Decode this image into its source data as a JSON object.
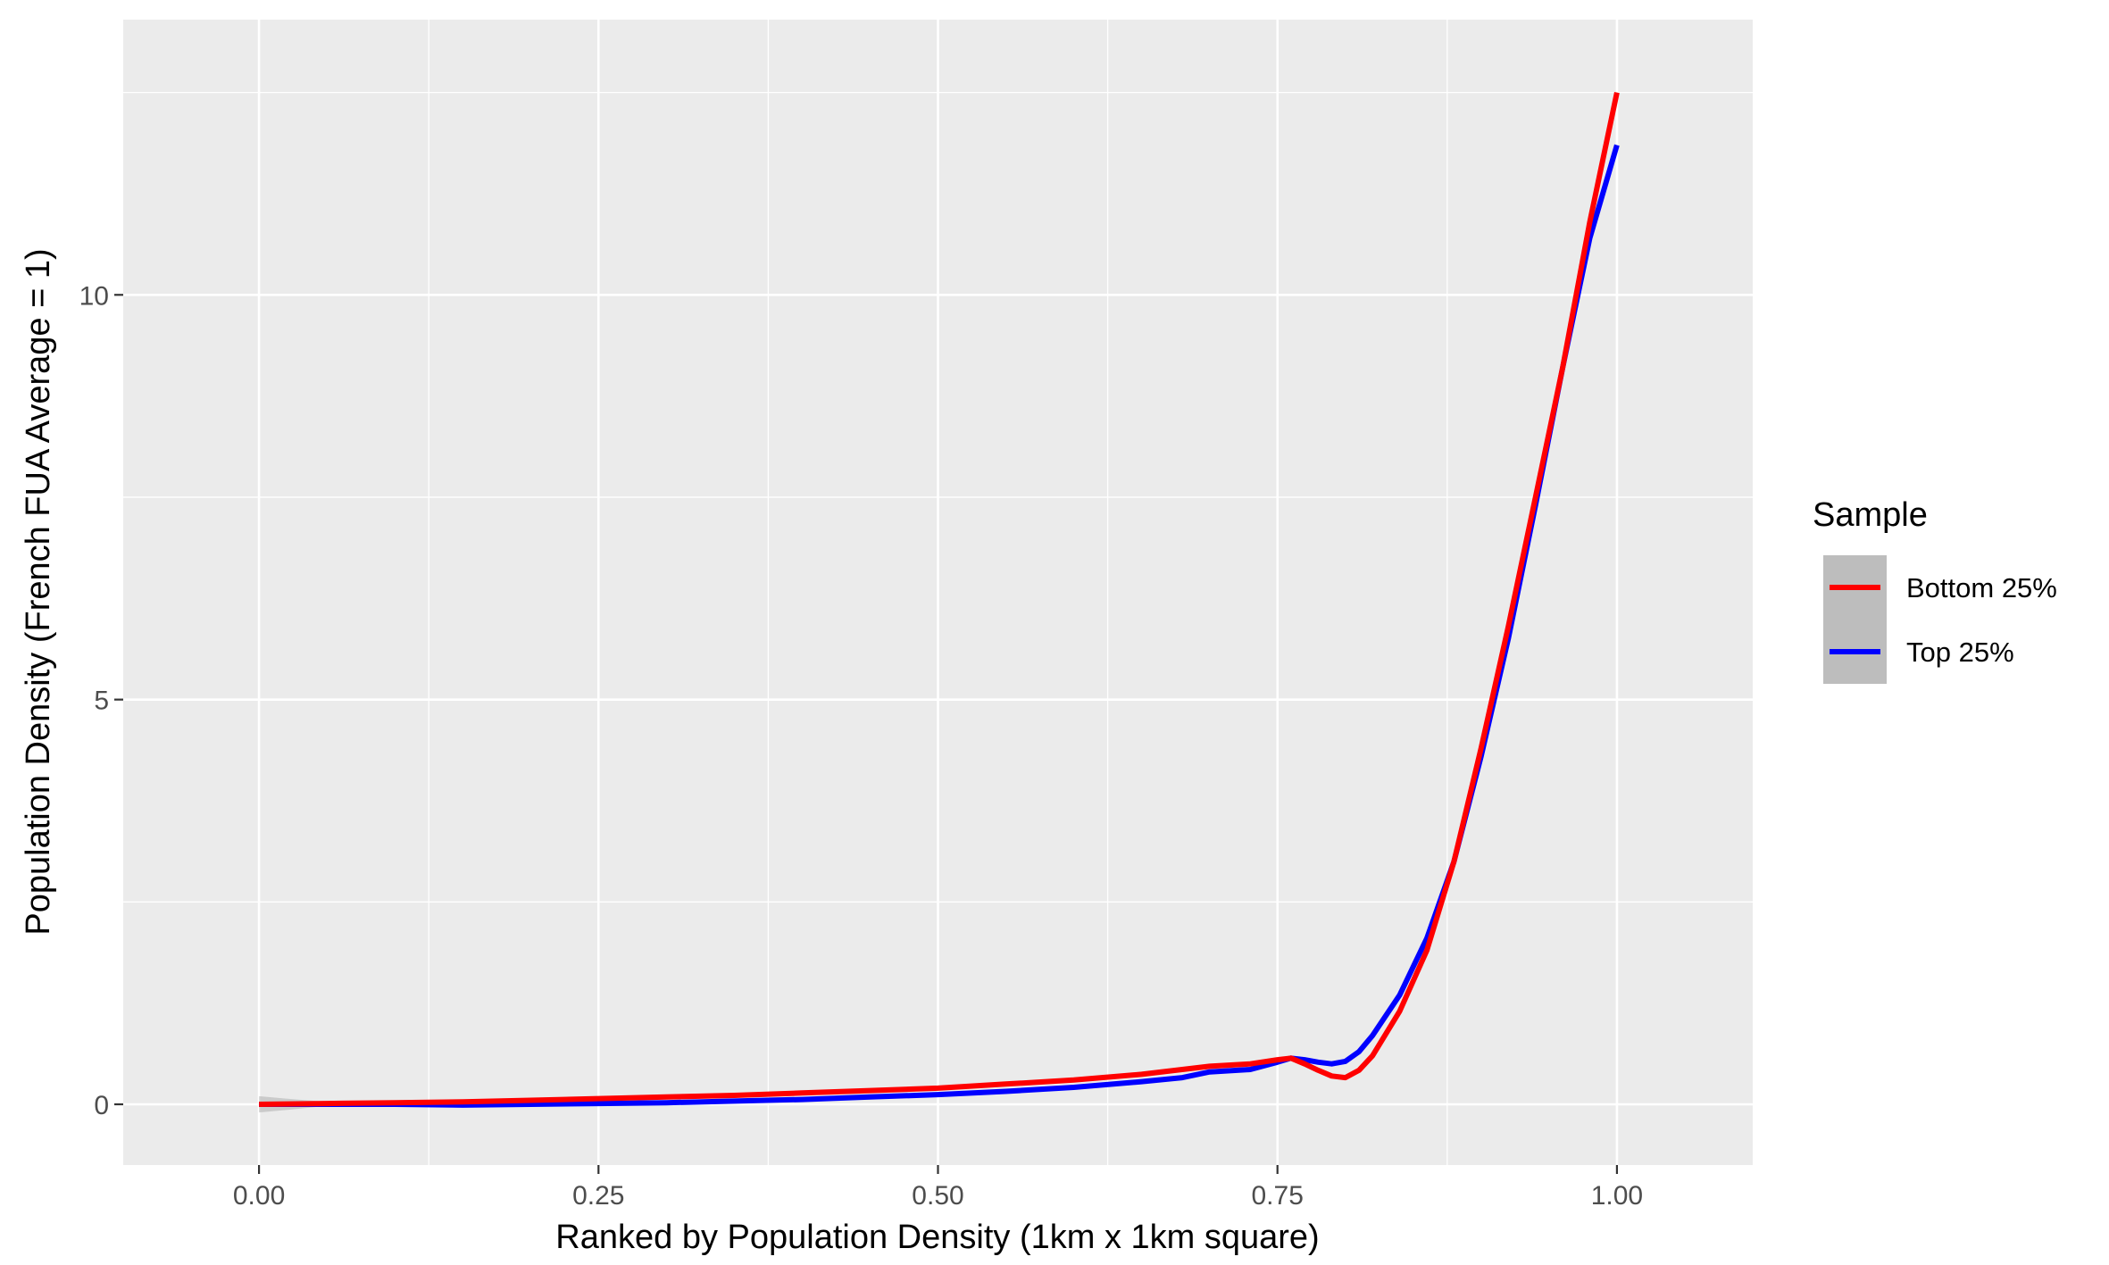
{
  "chart_data": {
    "type": "line",
    "title": "",
    "xlabel": "Ranked by Population Density (1km x 1km square)",
    "ylabel": "Population Density (French FUA Average = 1)",
    "xlim": [
      -0.1,
      1.1
    ],
    "ylim": [
      -0.75,
      13.4
    ],
    "x_ticks": [
      0.0,
      0.25,
      0.5,
      0.75,
      1.0
    ],
    "x_tick_labels": [
      "0.00",
      "0.25",
      "0.50",
      "0.75",
      "1.00"
    ],
    "y_ticks": [
      0,
      5,
      10
    ],
    "y_tick_labels": [
      "0",
      "5",
      "10"
    ],
    "grid": true,
    "legend": {
      "title": "Sample",
      "position": "right"
    },
    "series": [
      {
        "name": "Bottom 25%",
        "color": "#ff0000",
        "x": [
          0,
          0.05,
          0.1,
          0.15,
          0.2,
          0.25,
          0.3,
          0.35,
          0.4,
          0.45,
          0.5,
          0.55,
          0.6,
          0.65,
          0.7,
          0.73,
          0.75,
          0.76,
          0.77,
          0.78,
          0.79,
          0.8,
          0.81,
          0.82,
          0.84,
          0.86,
          0.88,
          0.9,
          0.92,
          0.94,
          0.96,
          0.98,
          1.0
        ],
        "y": [
          0.0,
          0.01,
          0.02,
          0.03,
          0.05,
          0.07,
          0.09,
          0.11,
          0.14,
          0.17,
          0.2,
          0.25,
          0.3,
          0.37,
          0.47,
          0.5,
          0.55,
          0.57,
          0.5,
          0.42,
          0.35,
          0.33,
          0.42,
          0.6,
          1.15,
          1.9,
          3.0,
          4.4,
          5.9,
          7.5,
          9.1,
          10.9,
          12.5
        ]
      },
      {
        "name": "Top 25%",
        "color": "#0000ff",
        "x": [
          0,
          0.05,
          0.1,
          0.15,
          0.2,
          0.25,
          0.3,
          0.35,
          0.4,
          0.45,
          0.5,
          0.55,
          0.6,
          0.65,
          0.68,
          0.7,
          0.73,
          0.75,
          0.76,
          0.77,
          0.78,
          0.79,
          0.8,
          0.81,
          0.82,
          0.84,
          0.86,
          0.88,
          0.9,
          0.92,
          0.94,
          0.96,
          0.98,
          1.0
        ],
        "y": [
          0.0,
          0.0,
          0.0,
          -0.01,
          0.0,
          0.01,
          0.02,
          0.04,
          0.06,
          0.09,
          0.12,
          0.16,
          0.21,
          0.28,
          0.33,
          0.4,
          0.43,
          0.52,
          0.57,
          0.55,
          0.52,
          0.5,
          0.53,
          0.65,
          0.85,
          1.35,
          2.05,
          3.0,
          4.3,
          5.75,
          7.4,
          9.1,
          10.7,
          11.85
        ]
      }
    ]
  }
}
